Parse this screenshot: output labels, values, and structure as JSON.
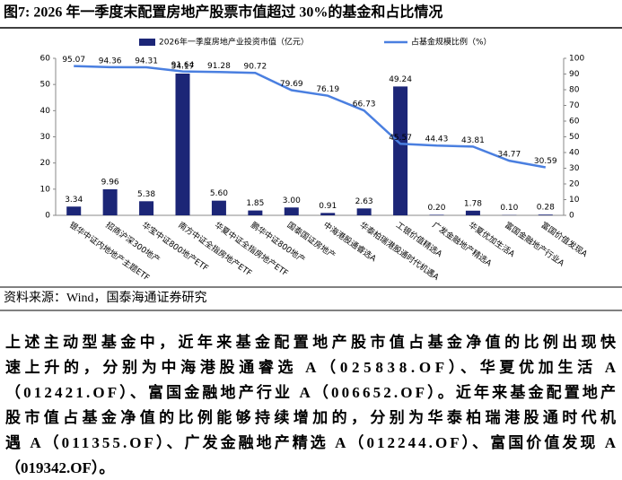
{
  "chart_data": {
    "type": "bar_line",
    "title": "图7:  2026 年一季度末配置房地产股票市值超过 30%的基金和占比情况",
    "categories": [
      "银华中证内地地产主题ETF",
      "招商沪深300地产",
      "华宝中证800地产ETF",
      "南方中证全指房地产ETF",
      "华夏中证全指房地产ETF",
      "鹏华中证800地产",
      "国泰国证房地产",
      "中海港股通睿选A",
      "华泰柏瑞港股通时代机遇A",
      "工银价值精选A",
      "广发金融地产精选A",
      "华夏优加生活A",
      "富国金融地产行业A",
      "富国价值发现A"
    ],
    "series": [
      {
        "name": "2026年一季度房地产业投资市值（亿元）",
        "type": "bar",
        "color": "#1c2677",
        "values": [
          3.34,
          9.96,
          5.38,
          54.17,
          5.6,
          1.85,
          3.0,
          0.91,
          2.63,
          49.24,
          0.2,
          1.78,
          0.1,
          0.28
        ],
        "value_labels": [
          "3.34",
          "9.96",
          "5.38",
          "54.17",
          "5.60",
          "1.85",
          "3.00",
          "0.91",
          "2.63",
          "49.24",
          "0.20",
          "1.78",
          "0.10",
          "0.28"
        ]
      },
      {
        "name": "占基金规模比例（%）",
        "type": "line",
        "axis": "y2",
        "color": "#4a7fe0",
        "values": [
          95.07,
          94.36,
          94.31,
          91.64,
          91.28,
          90.72,
          79.69,
          76.19,
          66.73,
          45.57,
          44.43,
          43.81,
          34.77,
          30.59
        ]
      }
    ],
    "ylim": [
      0,
      60
    ],
    "yticks": [
      0,
      10,
      20,
      30,
      40,
      50,
      60
    ],
    "y2lim": [
      0,
      100
    ],
    "y2ticks": [
      0,
      10,
      20,
      30,
      40,
      50,
      60,
      70,
      80,
      90,
      100
    ],
    "legend": "top"
  },
  "source": "资料来源：Wind，国泰海通证券研究",
  "body": {
    "lines": [
      "上述主动型基金中，近年来基金配置地产股市值占基金净值的比例出现快",
      "速上升的，分别为中海港股通睿选 A（025838.OF）、华夏优加生活 A",
      "（012421.OF）、富国金融地产行业 A（006652.OF）。近年来基金配置地产",
      "股市值占基金净值的比例能够持续增加的，分别为华泰柏瑞港股通时代机",
      "遇 A（011355.OF）、广发金融地产精选 A（012244.OF）、富国价值发现 A",
      "（019342.OF）。"
    ]
  }
}
